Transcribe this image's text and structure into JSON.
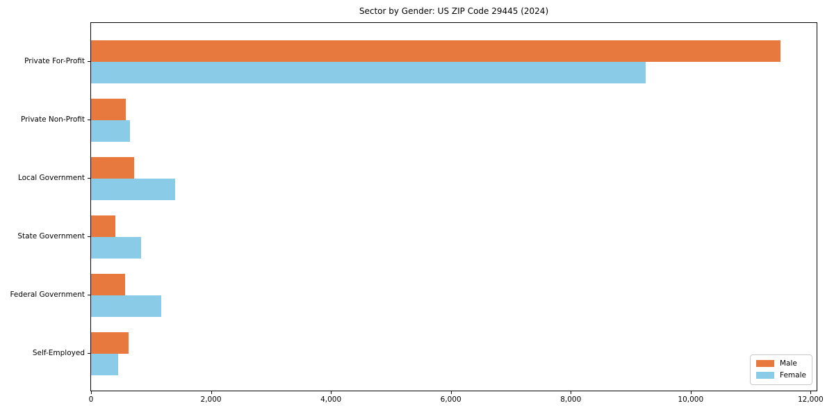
{
  "chart_data": {
    "type": "bar",
    "orientation": "horizontal",
    "title": "Sector by Gender: US ZIP Code 29445 (2024)",
    "categories": [
      "Private For-Profit",
      "Private Non-Profit",
      "Local Government",
      "State Government",
      "Federal Government",
      "Self-Employed"
    ],
    "series": [
      {
        "name": "Male",
        "color": "#E8793E",
        "values": [
          11500,
          580,
          720,
          400,
          570,
          630
        ]
      },
      {
        "name": "Female",
        "color": "#8ACBE8",
        "values": [
          9250,
          650,
          1400,
          830,
          1170,
          450
        ]
      }
    ],
    "xlabel": "",
    "ylabel": "",
    "xlim": [
      0,
      12100
    ],
    "xticks": [
      0,
      2000,
      4000,
      6000,
      8000,
      10000,
      12000
    ],
    "xtick_labels": [
      "0",
      "2,000",
      "4,000",
      "6,000",
      "8,000",
      "10,000",
      "12,000"
    ],
    "grid": false,
    "legend": {
      "position": "lower right",
      "entries": [
        "Male",
        "Female"
      ]
    }
  },
  "colors": {
    "male": "#E8793E",
    "female": "#8ACBE8",
    "spine": "#000000",
    "legend_border": "#c9c9c9",
    "background": "#ffffff"
  }
}
